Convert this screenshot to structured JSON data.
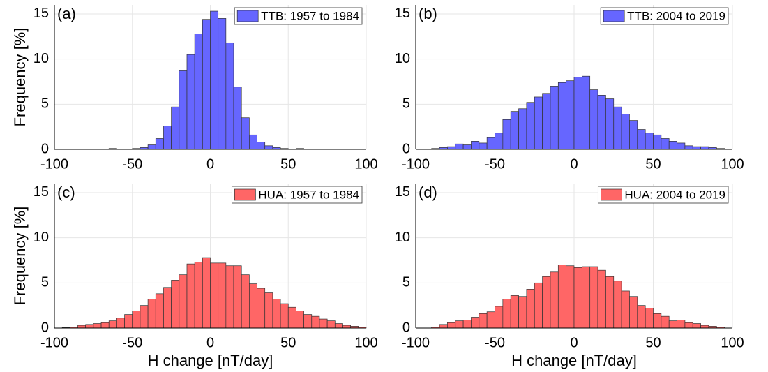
{
  "chart_data": [
    {
      "type": "histogram",
      "panel_label": "(a)",
      "ylabel": "Frequency [%]",
      "bins": [
        -100,
        -95,
        -90,
        -85,
        -80,
        -75,
        -70,
        -65,
        -60,
        -55,
        -50,
        -45,
        -40,
        -35,
        -30,
        -25,
        -20,
        -15,
        -10,
        -5,
        0,
        5,
        10,
        15,
        20,
        25,
        30,
        35,
        40,
        45,
        50,
        55,
        60,
        65,
        70,
        75,
        80,
        85,
        90,
        95,
        100
      ],
      "series": [
        {
          "name": "TTB: 1957 to 1984",
          "color": "#6666ff",
          "values": [
            0,
            0,
            0,
            0,
            0,
            0.02,
            0.02,
            0.1,
            0.02,
            0.05,
            0.1,
            0.2,
            0.5,
            1.2,
            2.6,
            4.7,
            8.7,
            10.5,
            12.8,
            14.4,
            15.3,
            14.5,
            11.8,
            6.9,
            3.5,
            1.6,
            0.8,
            0.4,
            0.2,
            0.1,
            0.05,
            0.1,
            0.05,
            0.02,
            0.02,
            0.01,
            0.01,
            0,
            0,
            0
          ]
        }
      ],
      "xlim": [
        -100,
        100
      ],
      "xticks": [
        -100,
        -50,
        0,
        50,
        100
      ],
      "ylim": [
        0,
        16
      ],
      "yticks": [
        0,
        5,
        10,
        15
      ],
      "grid": true,
      "legend": "upper right"
    },
    {
      "type": "histogram",
      "panel_label": "(b)",
      "bins": [
        -90,
        -85,
        -80,
        -75,
        -70,
        -65,
        -60,
        -55,
        -50,
        -45,
        -40,
        -35,
        -30,
        -25,
        -20,
        -15,
        -10,
        -5,
        0,
        5,
        10,
        15,
        20,
        25,
        30,
        35,
        40,
        45,
        50,
        55,
        60,
        65,
        70,
        75,
        80,
        85,
        90,
        95
      ],
      "series": [
        {
          "name": "TTB: 2004 to 2019",
          "color": "#6666ff",
          "values": [
            0.1,
            0.2,
            0.3,
            0.6,
            0.5,
            0.9,
            0.7,
            1.3,
            1.8,
            3.3,
            4.2,
            4.5,
            5.2,
            5.8,
            6.2,
            7.0,
            7.4,
            7.6,
            8.0,
            8.1,
            6.6,
            6.0,
            5.6,
            4.7,
            3.9,
            3.2,
            2.2,
            1.8,
            1.6,
            1.2,
            0.9,
            0.7,
            0.4,
            0.3,
            0.3,
            0.2,
            0.1
          ]
        }
      ],
      "xlim": [
        -100,
        100
      ],
      "xticks": [
        -100,
        -50,
        0,
        50,
        100
      ],
      "ylim": [
        0,
        16
      ],
      "yticks": [
        0,
        5,
        10,
        15
      ],
      "grid": true,
      "legend": "upper right"
    },
    {
      "type": "histogram",
      "panel_label": "(c)",
      "ylabel": "Frequency [%]",
      "xlabel": "H change [nT/day]",
      "bins": [
        -95,
        -90,
        -85,
        -80,
        -75,
        -70,
        -65,
        -60,
        -55,
        -50,
        -45,
        -40,
        -35,
        -30,
        -25,
        -20,
        -15,
        -10,
        -5,
        0,
        5,
        10,
        15,
        20,
        25,
        30,
        35,
        40,
        45,
        50,
        55,
        60,
        65,
        70,
        75,
        80,
        85,
        90,
        95,
        100
      ],
      "series": [
        {
          "name": "HUA: 1957 to 1984",
          "color": "#ff6666",
          "values": [
            0.05,
            0.1,
            0.3,
            0.4,
            0.5,
            0.6,
            0.8,
            1.1,
            1.5,
            1.9,
            2.5,
            3.2,
            3.8,
            4.5,
            5.3,
            5.9,
            7.1,
            7.3,
            7.8,
            7.2,
            7.2,
            6.9,
            6.9,
            5.9,
            4.9,
            4.4,
            3.9,
            3.2,
            2.7,
            2.3,
            1.9,
            1.5,
            1.3,
            1.0,
            0.8,
            0.5,
            0.3,
            0.2,
            0.1
          ]
        }
      ],
      "xlim": [
        -100,
        100
      ],
      "xticks": [
        -100,
        -50,
        0,
        50,
        100
      ],
      "ylim": [
        0,
        16
      ],
      "yticks": [
        0,
        5,
        10,
        15
      ],
      "grid": true,
      "legend": "upper right"
    },
    {
      "type": "histogram",
      "panel_label": "(d)",
      "xlabel": "H change [nT/day]",
      "bins": [
        -90,
        -85,
        -80,
        -75,
        -70,
        -65,
        -60,
        -55,
        -50,
        -45,
        -40,
        -35,
        -30,
        -25,
        -20,
        -15,
        -10,
        -5,
        0,
        5,
        10,
        15,
        20,
        25,
        30,
        35,
        40,
        45,
        50,
        55,
        60,
        65,
        70,
        75,
        80,
        85,
        90,
        95
      ],
      "series": [
        {
          "name": "HUA: 2004 to 2019",
          "color": "#ff6666",
          "values": [
            0.1,
            0.4,
            0.6,
            0.8,
            0.9,
            1.2,
            1.6,
            1.8,
            2.4,
            3.2,
            3.6,
            3.5,
            4.3,
            5.0,
            5.7,
            6.2,
            7.0,
            6.9,
            6.7,
            6.8,
            6.8,
            6.4,
            5.7,
            5.2,
            4.1,
            3.5,
            2.5,
            2.2,
            1.6,
            1.3,
            0.8,
            0.9,
            0.6,
            0.5,
            0.3,
            0.2,
            0.1
          ]
        }
      ],
      "xlim": [
        -100,
        100
      ],
      "xticks": [
        -100,
        -50,
        0,
        50,
        100
      ],
      "ylim": [
        0,
        16
      ],
      "yticks": [
        0,
        5,
        10,
        15
      ],
      "grid": true,
      "legend": "upper right"
    }
  ]
}
